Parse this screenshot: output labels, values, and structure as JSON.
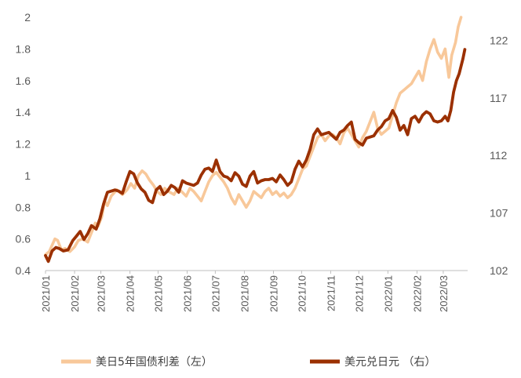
{
  "chart_data": {
    "type": "line",
    "title": "",
    "x_ticks": [
      "2021/01",
      "2021/02",
      "2021/03",
      "2021/04",
      "2021/05",
      "2021/06",
      "2021/07",
      "2021/08",
      "2021/09",
      "2021/10",
      "2021/11",
      "2021/12",
      "2022/01",
      "2022/02",
      "2022/03"
    ],
    "y_left": {
      "ticks": [
        "0.4",
        "0.6",
        "0.8",
        "1",
        "1.2",
        "1.4",
        "1.6",
        "1.8",
        "2"
      ],
      "range": [
        0.4,
        2.0
      ]
    },
    "y_right": {
      "ticks": [
        "102",
        "107",
        "112",
        "117",
        "122"
      ],
      "range": [
        102,
        124
      ]
    },
    "legend_position": "bottom",
    "series": [
      {
        "name": "美日5年国债利差（左）",
        "axis": "left",
        "color": "#F8C89A",
        "points": [
          [
            "2021-01-01",
            0.5
          ],
          [
            "2021-01-05",
            0.52
          ],
          [
            "2021-01-08",
            0.56
          ],
          [
            "2021-01-11",
            0.6
          ],
          [
            "2021-01-14",
            0.59
          ],
          [
            "2021-01-18",
            0.53
          ],
          [
            "2021-01-22",
            0.54
          ],
          [
            "2021-01-27",
            0.52
          ],
          [
            "2021-02-01",
            0.55
          ],
          [
            "2021-02-05",
            0.59
          ],
          [
            "2021-02-10",
            0.6
          ],
          [
            "2021-02-15",
            0.58
          ],
          [
            "2021-02-19",
            0.64
          ],
          [
            "2021-02-23",
            0.7
          ],
          [
            "2021-02-26",
            0.68
          ],
          [
            "2021-03-02",
            0.74
          ],
          [
            "2021-03-05",
            0.84
          ],
          [
            "2021-03-08",
            0.81
          ],
          [
            "2021-03-12",
            0.87
          ],
          [
            "2021-03-18",
            0.91
          ],
          [
            "2021-03-24",
            0.88
          ],
          [
            "2021-03-29",
            0.91
          ],
          [
            "2021-04-02",
            0.95
          ],
          [
            "2021-04-06",
            0.92
          ],
          [
            "2021-04-10",
            1.0
          ],
          [
            "2021-04-14",
            1.03
          ],
          [
            "2021-04-18",
            1.01
          ],
          [
            "2021-04-22",
            0.97
          ],
          [
            "2021-04-26",
            0.94
          ],
          [
            "2021-04-30",
            0.9
          ],
          [
            "2021-05-04",
            0.88
          ],
          [
            "2021-05-08",
            0.92
          ],
          [
            "2021-05-12",
            0.9
          ],
          [
            "2021-05-18",
            0.88
          ],
          [
            "2021-05-22",
            0.92
          ],
          [
            "2021-05-26",
            0.9
          ],
          [
            "2021-05-31",
            0.87
          ],
          [
            "2021-06-04",
            0.92
          ],
          [
            "2021-06-08",
            0.9
          ],
          [
            "2021-06-12",
            0.87
          ],
          [
            "2021-06-16",
            0.84
          ],
          [
            "2021-06-20",
            0.9
          ],
          [
            "2021-06-24",
            0.96
          ],
          [
            "2021-06-28",
            1.0
          ],
          [
            "2021-07-02",
            1.02
          ],
          [
            "2021-07-06",
            0.99
          ],
          [
            "2021-07-10",
            0.96
          ],
          [
            "2021-07-14",
            0.92
          ],
          [
            "2021-07-18",
            0.86
          ],
          [
            "2021-07-22",
            0.82
          ],
          [
            "2021-07-26",
            0.88
          ],
          [
            "2021-07-30",
            0.84
          ],
          [
            "2021-08-03",
            0.8
          ],
          [
            "2021-08-07",
            0.84
          ],
          [
            "2021-08-11",
            0.9
          ],
          [
            "2021-08-15",
            0.88
          ],
          [
            "2021-08-19",
            0.86
          ],
          [
            "2021-08-23",
            0.9
          ],
          [
            "2021-08-27",
            0.92
          ],
          [
            "2021-08-31",
            0.88
          ],
          [
            "2021-09-04",
            0.9
          ],
          [
            "2021-09-08",
            0.87
          ],
          [
            "2021-09-12",
            0.89
          ],
          [
            "2021-09-16",
            0.86
          ],
          [
            "2021-09-20",
            0.88
          ],
          [
            "2021-09-24",
            0.92
          ],
          [
            "2021-09-28",
            0.98
          ],
          [
            "2021-10-02",
            1.04
          ],
          [
            "2021-10-06",
            1.06
          ],
          [
            "2021-10-10",
            1.12
          ],
          [
            "2021-10-14",
            1.18
          ],
          [
            "2021-10-18",
            1.24
          ],
          [
            "2021-10-22",
            1.26
          ],
          [
            "2021-10-26",
            1.22
          ],
          [
            "2021-10-30",
            1.25
          ],
          [
            "2021-11-03",
            1.26
          ],
          [
            "2021-11-07",
            1.24
          ],
          [
            "2021-11-11",
            1.2
          ],
          [
            "2021-11-15",
            1.27
          ],
          [
            "2021-11-19",
            1.3
          ],
          [
            "2021-11-23",
            1.26
          ],
          [
            "2021-11-27",
            1.22
          ],
          [
            "2021-12-01",
            1.18
          ],
          [
            "2021-12-05",
            1.24
          ],
          [
            "2021-12-09",
            1.28
          ],
          [
            "2021-12-13",
            1.34
          ],
          [
            "2021-12-17",
            1.4
          ],
          [
            "2021-12-21",
            1.3
          ],
          [
            "2021-12-25",
            1.26
          ],
          [
            "2021-12-29",
            1.28
          ],
          [
            "2022-01-02",
            1.3
          ],
          [
            "2022-01-06",
            1.38
          ],
          [
            "2022-01-10",
            1.46
          ],
          [
            "2022-01-14",
            1.52
          ],
          [
            "2022-01-18",
            1.54
          ],
          [
            "2022-01-22",
            1.56
          ],
          [
            "2022-01-26",
            1.58
          ],
          [
            "2022-01-30",
            1.62
          ],
          [
            "2022-02-03",
            1.66
          ],
          [
            "2022-02-07",
            1.6
          ],
          [
            "2022-02-11",
            1.72
          ],
          [
            "2022-02-15",
            1.8
          ],
          [
            "2022-02-19",
            1.86
          ],
          [
            "2022-02-23",
            1.78
          ],
          [
            "2022-02-27",
            1.74
          ],
          [
            "2022-03-03",
            1.8
          ],
          [
            "2022-03-07",
            1.62
          ],
          [
            "2022-03-10",
            1.76
          ],
          [
            "2022-03-14",
            1.84
          ],
          [
            "2022-03-17",
            1.94
          ],
          [
            "2022-03-20",
            2.0
          ]
        ]
      },
      {
        "name": "美元兑日元 （右）",
        "axis": "right",
        "color": "#9B3000",
        "points": [
          [
            "2021-01-01",
            103.3
          ],
          [
            "2021-01-04",
            102.8
          ],
          [
            "2021-01-08",
            103.7
          ],
          [
            "2021-01-12",
            104.0
          ],
          [
            "2021-01-16",
            103.9
          ],
          [
            "2021-01-20",
            103.7
          ],
          [
            "2021-01-25",
            103.8
          ],
          [
            "2021-01-30",
            104.6
          ],
          [
            "2021-02-03",
            105.0
          ],
          [
            "2021-02-07",
            105.4
          ],
          [
            "2021-02-11",
            104.7
          ],
          [
            "2021-02-15",
            105.2
          ],
          [
            "2021-02-19",
            105.9
          ],
          [
            "2021-02-24",
            105.6
          ],
          [
            "2021-02-28",
            106.5
          ],
          [
            "2021-03-04",
            107.8
          ],
          [
            "2021-03-08",
            108.8
          ],
          [
            "2021-03-12",
            108.9
          ],
          [
            "2021-03-16",
            109.0
          ],
          [
            "2021-03-20",
            108.9
          ],
          [
            "2021-03-24",
            108.7
          ],
          [
            "2021-03-28",
            109.7
          ],
          [
            "2021-04-01",
            110.6
          ],
          [
            "2021-04-05",
            110.4
          ],
          [
            "2021-04-09",
            109.6
          ],
          [
            "2021-04-13",
            109.1
          ],
          [
            "2021-04-17",
            108.8
          ],
          [
            "2021-04-21",
            108.1
          ],
          [
            "2021-04-25",
            107.9
          ],
          [
            "2021-04-29",
            109.0
          ],
          [
            "2021-05-03",
            109.3
          ],
          [
            "2021-05-07",
            108.6
          ],
          [
            "2021-05-11",
            108.9
          ],
          [
            "2021-05-15",
            109.4
          ],
          [
            "2021-05-19",
            109.2
          ],
          [
            "2021-05-23",
            108.8
          ],
          [
            "2021-05-27",
            109.8
          ],
          [
            "2021-05-31",
            109.6
          ],
          [
            "2021-06-04",
            109.5
          ],
          [
            "2021-06-08",
            109.4
          ],
          [
            "2021-06-12",
            109.6
          ],
          [
            "2021-06-16",
            110.3
          ],
          [
            "2021-06-20",
            110.8
          ],
          [
            "2021-06-24",
            110.9
          ],
          [
            "2021-06-28",
            110.6
          ],
          [
            "2021-07-02",
            111.6
          ],
          [
            "2021-07-06",
            110.6
          ],
          [
            "2021-07-10",
            110.2
          ],
          [
            "2021-07-14",
            110.1
          ],
          [
            "2021-07-18",
            109.8
          ],
          [
            "2021-07-22",
            110.5
          ],
          [
            "2021-07-26",
            110.2
          ],
          [
            "2021-07-30",
            109.5
          ],
          [
            "2021-08-03",
            109.3
          ],
          [
            "2021-08-07",
            110.2
          ],
          [
            "2021-08-11",
            110.6
          ],
          [
            "2021-08-15",
            109.6
          ],
          [
            "2021-08-19",
            109.8
          ],
          [
            "2021-08-23",
            109.9
          ],
          [
            "2021-08-27",
            109.9
          ],
          [
            "2021-08-31",
            110.0
          ],
          [
            "2021-09-04",
            109.7
          ],
          [
            "2021-09-08",
            110.3
          ],
          [
            "2021-09-12",
            109.9
          ],
          [
            "2021-09-16",
            109.4
          ],
          [
            "2021-09-20",
            109.7
          ],
          [
            "2021-09-24",
            110.8
          ],
          [
            "2021-09-28",
            111.5
          ],
          [
            "2021-10-02",
            111.0
          ],
          [
            "2021-10-06",
            111.6
          ],
          [
            "2021-10-10",
            112.5
          ],
          [
            "2021-10-14",
            113.8
          ],
          [
            "2021-10-18",
            114.3
          ],
          [
            "2021-10-22",
            113.8
          ],
          [
            "2021-10-26",
            113.9
          ],
          [
            "2021-10-30",
            114.0
          ],
          [
            "2021-11-03",
            113.7
          ],
          [
            "2021-11-07",
            113.4
          ],
          [
            "2021-11-11",
            114.0
          ],
          [
            "2021-11-15",
            114.2
          ],
          [
            "2021-11-19",
            114.6
          ],
          [
            "2021-11-23",
            114.9
          ],
          [
            "2021-11-27",
            113.4
          ],
          [
            "2021-12-01",
            113.1
          ],
          [
            "2021-12-05",
            112.9
          ],
          [
            "2021-12-09",
            113.5
          ],
          [
            "2021-12-13",
            113.6
          ],
          [
            "2021-12-17",
            113.7
          ],
          [
            "2021-12-21",
            114.2
          ],
          [
            "2021-12-25",
            114.5
          ],
          [
            "2021-12-29",
            115.0
          ],
          [
            "2022-01-02",
            115.2
          ],
          [
            "2022-01-06",
            115.9
          ],
          [
            "2022-01-10",
            115.3
          ],
          [
            "2022-01-14",
            114.2
          ],
          [
            "2022-01-18",
            114.6
          ],
          [
            "2022-01-22",
            113.8
          ],
          [
            "2022-01-26",
            115.2
          ],
          [
            "2022-01-30",
            115.4
          ],
          [
            "2022-02-03",
            114.9
          ],
          [
            "2022-02-07",
            115.5
          ],
          [
            "2022-02-11",
            115.8
          ],
          [
            "2022-02-15",
            115.6
          ],
          [
            "2022-02-19",
            115.0
          ],
          [
            "2022-02-23",
            114.9
          ],
          [
            "2022-02-27",
            115.0
          ],
          [
            "2022-03-03",
            115.4
          ],
          [
            "2022-03-06",
            115.0
          ],
          [
            "2022-03-09",
            115.9
          ],
          [
            "2022-03-12",
            117.5
          ],
          [
            "2022-03-15",
            118.5
          ],
          [
            "2022-03-18",
            119.1
          ],
          [
            "2022-03-22",
            120.4
          ],
          [
            "2022-03-24",
            121.2
          ]
        ]
      }
    ]
  }
}
